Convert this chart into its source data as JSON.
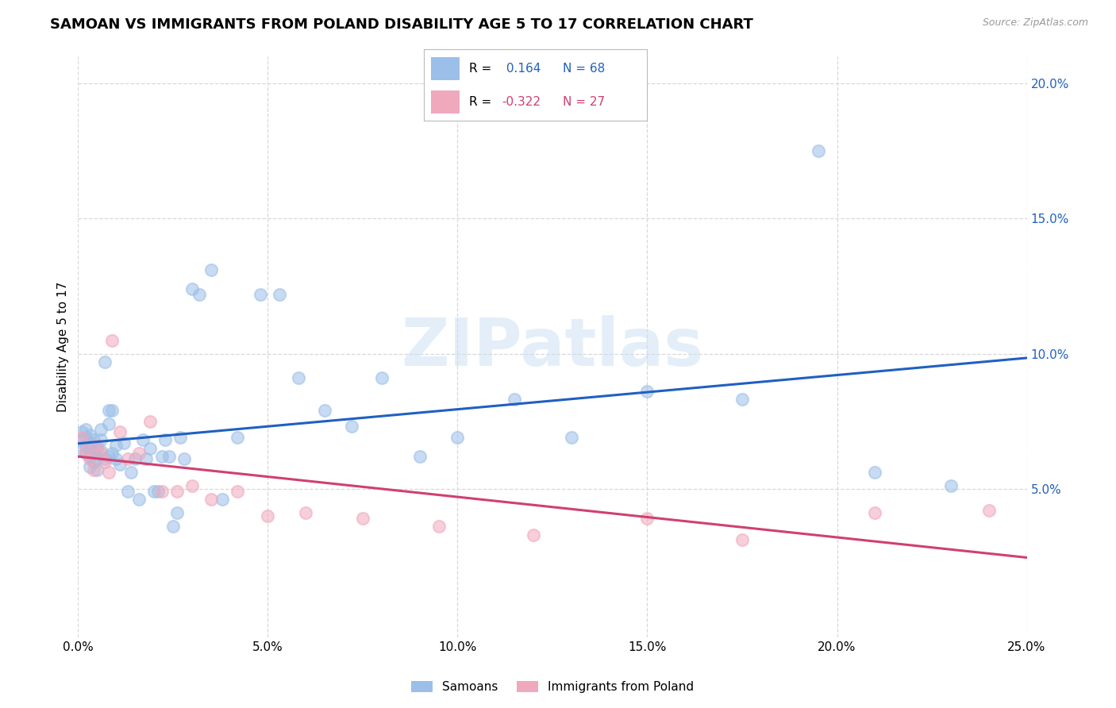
{
  "title": "SAMOAN VS IMMIGRANTS FROM POLAND DISABILITY AGE 5 TO 17 CORRELATION CHART",
  "source": "Source: ZipAtlas.com",
  "ylabel": "Disability Age 5 to 17",
  "xlim": [
    0.0,
    0.25
  ],
  "ylim": [
    -0.005,
    0.21
  ],
  "xticks": [
    0.0,
    0.05,
    0.1,
    0.15,
    0.2,
    0.25
  ],
  "xticklabels": [
    "0.0%",
    "5.0%",
    "10.0%",
    "15.0%",
    "20.0%",
    "25.0%"
  ],
  "yticks_right": [
    0.05,
    0.1,
    0.15,
    0.2
  ],
  "ytick_labels_right": [
    "5.0%",
    "10.0%",
    "15.0%",
    "20.0%"
  ],
  "background_color": "#ffffff",
  "grid_color": "#d8d8d8",
  "watermark_text": "ZIPatlas",
  "samoans_color": "#9bbfe8",
  "poland_color": "#f0a8bc",
  "line_blue": "#2060c0",
  "line_pink": "#d04070",
  "R_samoans": 0.164,
  "N_samoans": 68,
  "R_poland": -0.322,
  "N_poland": 27,
  "samoans_x": [
    0.001,
    0.001,
    0.001,
    0.002,
    0.002,
    0.002,
    0.002,
    0.003,
    0.003,
    0.003,
    0.003,
    0.003,
    0.004,
    0.004,
    0.004,
    0.005,
    0.005,
    0.005,
    0.006,
    0.006,
    0.006,
    0.007,
    0.007,
    0.008,
    0.008,
    0.008,
    0.009,
    0.009,
    0.01,
    0.01,
    0.011,
    0.012,
    0.013,
    0.014,
    0.015,
    0.016,
    0.017,
    0.018,
    0.019,
    0.02,
    0.021,
    0.022,
    0.023,
    0.024,
    0.025,
    0.026,
    0.027,
    0.028,
    0.03,
    0.032,
    0.035,
    0.038,
    0.042,
    0.048,
    0.053,
    0.058,
    0.065,
    0.072,
    0.08,
    0.09,
    0.1,
    0.115,
    0.13,
    0.15,
    0.175,
    0.195,
    0.21,
    0.23
  ],
  "samoans_y": [
    0.068,
    0.071,
    0.064,
    0.069,
    0.066,
    0.072,
    0.063,
    0.067,
    0.065,
    0.07,
    0.062,
    0.058,
    0.063,
    0.068,
    0.06,
    0.065,
    0.061,
    0.057,
    0.068,
    0.072,
    0.064,
    0.061,
    0.097,
    0.079,
    0.074,
    0.062,
    0.063,
    0.079,
    0.061,
    0.066,
    0.059,
    0.067,
    0.049,
    0.056,
    0.061,
    0.046,
    0.068,
    0.061,
    0.065,
    0.049,
    0.049,
    0.062,
    0.068,
    0.062,
    0.036,
    0.041,
    0.069,
    0.061,
    0.124,
    0.122,
    0.131,
    0.046,
    0.069,
    0.122,
    0.122,
    0.091,
    0.079,
    0.073,
    0.091,
    0.062,
    0.069,
    0.083,
    0.069,
    0.086,
    0.083,
    0.175,
    0.056,
    0.051
  ],
  "poland_x": [
    0.001,
    0.002,
    0.003,
    0.004,
    0.005,
    0.006,
    0.007,
    0.008,
    0.009,
    0.011,
    0.013,
    0.016,
    0.019,
    0.022,
    0.026,
    0.03,
    0.035,
    0.042,
    0.05,
    0.06,
    0.075,
    0.095,
    0.12,
    0.15,
    0.175,
    0.21,
    0.24
  ],
  "poland_y": [
    0.069,
    0.064,
    0.061,
    0.057,
    0.066,
    0.063,
    0.06,
    0.056,
    0.105,
    0.071,
    0.061,
    0.063,
    0.075,
    0.049,
    0.049,
    0.051,
    0.046,
    0.049,
    0.04,
    0.041,
    0.039,
    0.036,
    0.033,
    0.039,
    0.031,
    0.041,
    0.042
  ]
}
